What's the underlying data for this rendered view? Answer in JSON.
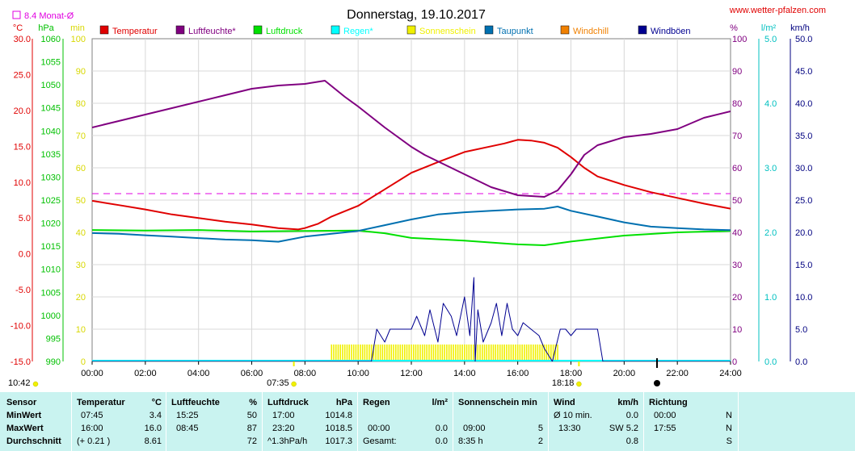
{
  "header": {
    "title": "Donnerstag, 19.10.2017",
    "website": "www.wetter-pfalzen.com",
    "monthly_avg": "8.4 Monat-Ø",
    "unit_temp": "°C",
    "unit_hpa": "hPa",
    "unit_min": "min",
    "unit_pct": "%",
    "unit_rain": "l/m²",
    "unit_wind": "km/h"
  },
  "legend": [
    {
      "label": "Temperatur",
      "color": "#e00000"
    },
    {
      "label": "Luftfeuchte*",
      "color": "#800080"
    },
    {
      "label": "Luftdruck",
      "color": "#00e000"
    },
    {
      "label": "Regen*",
      "color": "#00ffff"
    },
    {
      "label": "Sonnenschein",
      "color": "#f0f000"
    },
    {
      "label": "Taupunkt",
      "color": "#0070b0"
    },
    {
      "label": "Windchill",
      "color": "#f08000"
    },
    {
      "label": "Windböen",
      "color": "#000090"
    }
  ],
  "markers": {
    "sunrise": "07:35",
    "sunset": "18:18",
    "daylight": "10:42"
  },
  "chart_data": {
    "type": "line",
    "x_range": [
      0,
      24
    ],
    "x_ticks": [
      "00:00",
      "02:00",
      "04:00",
      "06:00",
      "08:00",
      "10:00",
      "12:00",
      "14:00",
      "16:00",
      "18:00",
      "20:00",
      "22:00",
      "24:00"
    ],
    "axes": {
      "temperature": {
        "range": [
          -15,
          30
        ],
        "ticks": [
          "30.0",
          "25.0",
          "20.0",
          "15.0",
          "10.0",
          "5.0",
          "0.0",
          "-5.0",
          "-10.0",
          "-15.0"
        ],
        "color": "#e00000"
      },
      "pressure": {
        "range": [
          990,
          1060
        ],
        "ticks": [
          "1060",
          "1055",
          "1050",
          "1045",
          "1040",
          "1035",
          "1030",
          "1025",
          "1020",
          "1015",
          "1010",
          "1005",
          "1000",
          "995",
          "990"
        ],
        "color": "#00c000"
      },
      "sunshine_min": {
        "range": [
          0,
          100
        ],
        "ticks": [
          "100",
          "90",
          "80",
          "70",
          "60",
          "50",
          "40",
          "30",
          "20",
          "10",
          "0"
        ],
        "color": "#d8d800"
      },
      "humidity": {
        "range": [
          0,
          100
        ],
        "ticks": [
          "100",
          "90",
          "80",
          "70",
          "60",
          "50",
          "40",
          "30",
          "20",
          "10",
          "0"
        ],
        "color": "#800080"
      },
      "rain": {
        "range": [
          0,
          5
        ],
        "ticks": [
          "5.0",
          "4.0",
          "3.0",
          "2.0",
          "1.0",
          "0.0"
        ],
        "color": "#00c0c0"
      },
      "wind": {
        "range": [
          0,
          50
        ],
        "ticks": [
          "50.0",
          "45.0",
          "40.0",
          "35.0",
          "30.0",
          "25.0",
          "20.0",
          "15.0",
          "10.0",
          "5.0",
          "0.0"
        ],
        "color": "#000080"
      }
    },
    "monthly_avg_line": {
      "value": 8.4,
      "color": "#e000e0"
    },
    "series": [
      {
        "name": "Temperatur",
        "axis": "temperature",
        "color": "#e00000",
        "points": [
          [
            0,
            7.4
          ],
          [
            1,
            6.8
          ],
          [
            2,
            6.2
          ],
          [
            3,
            5.5
          ],
          [
            4,
            5.0
          ],
          [
            5,
            4.5
          ],
          [
            6,
            4.1
          ],
          [
            7,
            3.6
          ],
          [
            7.75,
            3.4
          ],
          [
            8,
            3.6
          ],
          [
            8.5,
            4.2
          ],
          [
            9,
            5.2
          ],
          [
            10,
            6.7
          ],
          [
            11,
            9.0
          ],
          [
            12,
            11.3
          ],
          [
            13,
            12.8
          ],
          [
            14,
            14.2
          ],
          [
            15,
            15.0
          ],
          [
            15.5,
            15.4
          ],
          [
            16,
            15.9
          ],
          [
            16.5,
            15.8
          ],
          [
            17,
            15.5
          ],
          [
            17.5,
            14.8
          ],
          [
            18,
            13.5
          ],
          [
            18.5,
            12.0
          ],
          [
            19,
            10.8
          ],
          [
            20,
            9.6
          ],
          [
            21,
            8.6
          ],
          [
            22,
            7.8
          ],
          [
            23,
            7.0
          ],
          [
            24,
            6.3
          ]
        ]
      },
      {
        "name": "Luftfeuchte*",
        "axis": "humidity",
        "color": "#800080",
        "points": [
          [
            0,
            72.5
          ],
          [
            1,
            74.5
          ],
          [
            2,
            76.5
          ],
          [
            3,
            78.5
          ],
          [
            4,
            80.5
          ],
          [
            5,
            82.5
          ],
          [
            6,
            84.5
          ],
          [
            7,
            85.5
          ],
          [
            8,
            86
          ],
          [
            8.75,
            87
          ],
          [
            9.5,
            82
          ],
          [
            10,
            79
          ],
          [
            11,
            72.5
          ],
          [
            12,
            66.5
          ],
          [
            12.5,
            64
          ],
          [
            13,
            62
          ],
          [
            14,
            58
          ],
          [
            15,
            54
          ],
          [
            16,
            51.5
          ],
          [
            17,
            51
          ],
          [
            17.5,
            53
          ],
          [
            18,
            58
          ],
          [
            18.5,
            64
          ],
          [
            19,
            67
          ],
          [
            20,
            69.5
          ],
          [
            21,
            70.5
          ],
          [
            22,
            72
          ],
          [
            23,
            75.5
          ],
          [
            24,
            77.5
          ]
        ]
      },
      {
        "name": "Luftdruck",
        "axis": "pressure",
        "color": "#00e000",
        "points": [
          [
            0,
            1018.5
          ],
          [
            2,
            1018.4
          ],
          [
            4,
            1018.5
          ],
          [
            6,
            1018.2
          ],
          [
            8,
            1018.3
          ],
          [
            10,
            1018.4
          ],
          [
            11,
            1017.8
          ],
          [
            12,
            1016.8
          ],
          [
            14,
            1016.2
          ],
          [
            16,
            1015.4
          ],
          [
            17,
            1015.2
          ],
          [
            18,
            1016.0
          ],
          [
            20,
            1017.3
          ],
          [
            22,
            1018.0
          ],
          [
            24,
            1018.3
          ]
        ]
      },
      {
        "name": "Taupunkt",
        "axis": "temperature",
        "color": "#0070b0",
        "points": [
          [
            0,
            2.9
          ],
          [
            1,
            2.8
          ],
          [
            2,
            2.6
          ],
          [
            3,
            2.4
          ],
          [
            4,
            2.2
          ],
          [
            5,
            2.0
          ],
          [
            6,
            1.9
          ],
          [
            7,
            1.7
          ],
          [
            8,
            2.4
          ],
          [
            9,
            2.8
          ],
          [
            10,
            3.2
          ],
          [
            11,
            4.0
          ],
          [
            12,
            4.8
          ],
          [
            13,
            5.5
          ],
          [
            14,
            5.8
          ],
          [
            15,
            6.0
          ],
          [
            16,
            6.2
          ],
          [
            17,
            6.3
          ],
          [
            17.5,
            6.6
          ],
          [
            18,
            6.0
          ],
          [
            19,
            5.2
          ],
          [
            20,
            4.4
          ],
          [
            21,
            3.8
          ],
          [
            22,
            3.6
          ],
          [
            23,
            3.4
          ],
          [
            24,
            3.3
          ]
        ]
      },
      {
        "name": "Windböen",
        "axis": "wind",
        "color": "#000090",
        "points": [
          [
            0,
            0
          ],
          [
            10.5,
            0
          ],
          [
            10.7,
            5
          ],
          [
            11,
            3
          ],
          [
            11.2,
            5
          ],
          [
            11.5,
            5
          ],
          [
            12,
            5
          ],
          [
            12.2,
            7
          ],
          [
            12.5,
            4
          ],
          [
            12.7,
            8
          ],
          [
            13,
            3
          ],
          [
            13.2,
            9
          ],
          [
            13.5,
            7
          ],
          [
            13.7,
            4
          ],
          [
            14,
            10
          ],
          [
            14.2,
            4
          ],
          [
            14.35,
            13
          ],
          [
            14.4,
            0
          ],
          [
            14.5,
            8
          ],
          [
            14.7,
            3
          ],
          [
            15,
            6
          ],
          [
            15.2,
            9
          ],
          [
            15.4,
            4
          ],
          [
            15.6,
            9
          ],
          [
            15.8,
            5
          ],
          [
            16,
            4
          ],
          [
            16.2,
            6
          ],
          [
            16.5,
            5
          ],
          [
            16.8,
            4
          ],
          [
            17,
            2
          ],
          [
            17.3,
            0
          ],
          [
            17.6,
            5
          ],
          [
            17.8,
            5
          ],
          [
            18,
            4
          ],
          [
            18.2,
            5
          ],
          [
            18.5,
            5
          ],
          [
            18.7,
            5
          ],
          [
            19,
            5
          ],
          [
            19.2,
            0
          ],
          [
            19.5,
            0
          ],
          [
            24,
            0
          ]
        ]
      }
    ],
    "sunshine": {
      "axis": "sunshine_min",
      "color": "#f0f000",
      "from": 9.0,
      "to": 17.5,
      "height": 5
    }
  },
  "table": {
    "row_labels": [
      "Sensor",
      "MinWert",
      "MaxWert",
      "Durchschnitt"
    ],
    "temperature": {
      "head": "Temperatur",
      "unit": "°C",
      "min_time": "07:45",
      "min_val": "3.4",
      "max_time": "16:00",
      "max_val": "16.0",
      "avg_a": "(+ 0.21 )",
      "avg_b": "8.61"
    },
    "humidity": {
      "head": "Luftfeuchte",
      "unit": "%",
      "min_time": "15:25",
      "min_val": "50",
      "max_time": "08:45",
      "max_val": "87",
      "avg_b": "72"
    },
    "pressure": {
      "head": "Luftdruck",
      "unit": "hPa",
      "min_time": "17:00",
      "min_val": "1014.8",
      "max_time": "23:20",
      "max_val": "1018.5",
      "avg_a": "^1.3hPa/h",
      "avg_b": "1017.3"
    },
    "rain": {
      "head": "Regen",
      "unit": "l/m²",
      "max_time": "00:00",
      "max_val": "0.0",
      "avg_a": "Gesamt:",
      "avg_b": "0.0"
    },
    "sunshine": {
      "head": "Sonnenschein min",
      "max_time": "09:00",
      "max_val": "5",
      "avg_a": "8:35 h",
      "avg_b": "2"
    },
    "wind": {
      "head": "Wind",
      "unit": "km/h",
      "min_a": "Ø 10 min.",
      "min_val": "0.0",
      "max_time": "13:30",
      "max_val": "SW 5.2",
      "avg_b": "0.8"
    },
    "direction": {
      "head": "Richtung",
      "min_time": "00:00",
      "min_val": "N",
      "max_time": "17:55",
      "max_val": "N",
      "avg_b": "S"
    }
  }
}
